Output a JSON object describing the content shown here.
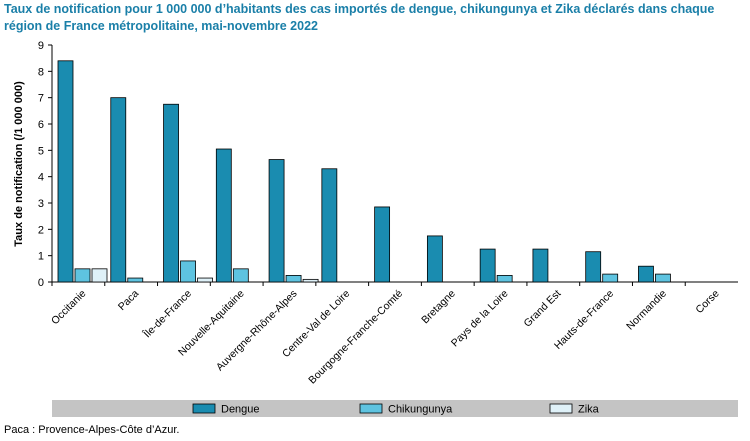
{
  "chart_data": {
    "type": "bar",
    "title": "Taux de notification pour 1 000 000 d’habitants des cas importés de dengue, chikungunya et Zika déclarés dans chaque région de France métropolitaine, mai-novembre 2022",
    "ylabel": "Taux de notification (/1 000 000)",
    "xlabel": "",
    "ylim": [
      0,
      9
    ],
    "yticks": [
      0,
      1,
      2,
      3,
      4,
      5,
      6,
      7,
      8,
      9
    ],
    "grid": false,
    "legend_position": "bottom",
    "categories": [
      "Occitanie",
      "Paca",
      "Île-de-France",
      "Nouvelle-Aquitaine",
      "Auvergne-Rhône-Alpes",
      "Centre-Val de Loire",
      "Bourgogne-Franche-Comté",
      "Bretagne",
      "Pays de la Loire",
      "Grand Est",
      "Hauts-de-France",
      "Normandie",
      "Corse"
    ],
    "series": [
      {
        "name": "Dengue",
        "color": "#1a8cb0",
        "values": [
          8.4,
          7.0,
          6.75,
          5.05,
          4.65,
          4.3,
          2.85,
          1.75,
          1.25,
          1.25,
          1.15,
          0.6,
          0
        ]
      },
      {
        "name": "Chikungunya",
        "color": "#5ec3e0",
        "values": [
          0.5,
          0.15,
          0.8,
          0.5,
          0.25,
          0,
          0,
          0,
          0.25,
          0,
          0.3,
          0.3,
          0
        ]
      },
      {
        "name": "Zika",
        "color": "#dff1f8",
        "values": [
          0.5,
          0,
          0.15,
          0,
          0.1,
          0,
          0,
          0,
          0,
          0,
          0,
          0,
          0
        ]
      }
    ]
  },
  "footnote": "Paca : Provence-Alpes-Côte d’Azur."
}
